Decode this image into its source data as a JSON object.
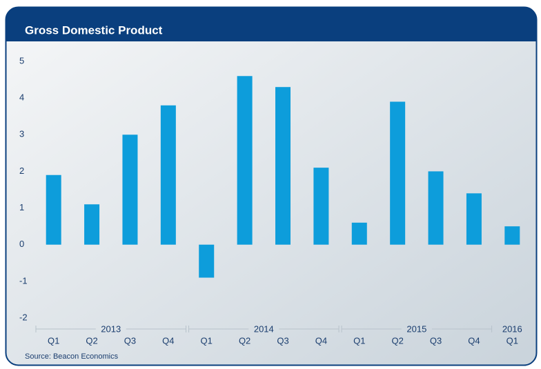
{
  "chart_data": {
    "type": "bar",
    "title": "Gross Domestic Product",
    "categories": [
      "Q1",
      "Q2",
      "Q3",
      "Q4",
      "Q1",
      "Q2",
      "Q3",
      "Q4",
      "Q1",
      "Q2",
      "Q3",
      "Q4",
      "Q1"
    ],
    "groups": [
      {
        "label": "2013",
        "size": 4
      },
      {
        "label": "2014",
        "size": 4
      },
      {
        "label": "2015",
        "size": 4
      },
      {
        "label": "2016",
        "size": 1
      }
    ],
    "values": [
      1.9,
      1.1,
      3.0,
      3.8,
      -0.9,
      4.6,
      4.3,
      2.1,
      0.6,
      3.9,
      2.0,
      1.4,
      0.5
    ],
    "color": "#0d9ddb",
    "ylim": [
      -2,
      5
    ],
    "yticks": [
      -2,
      -1,
      0,
      1,
      2,
      3,
      4,
      5
    ],
    "source": "Source: Beacon Economics"
  }
}
